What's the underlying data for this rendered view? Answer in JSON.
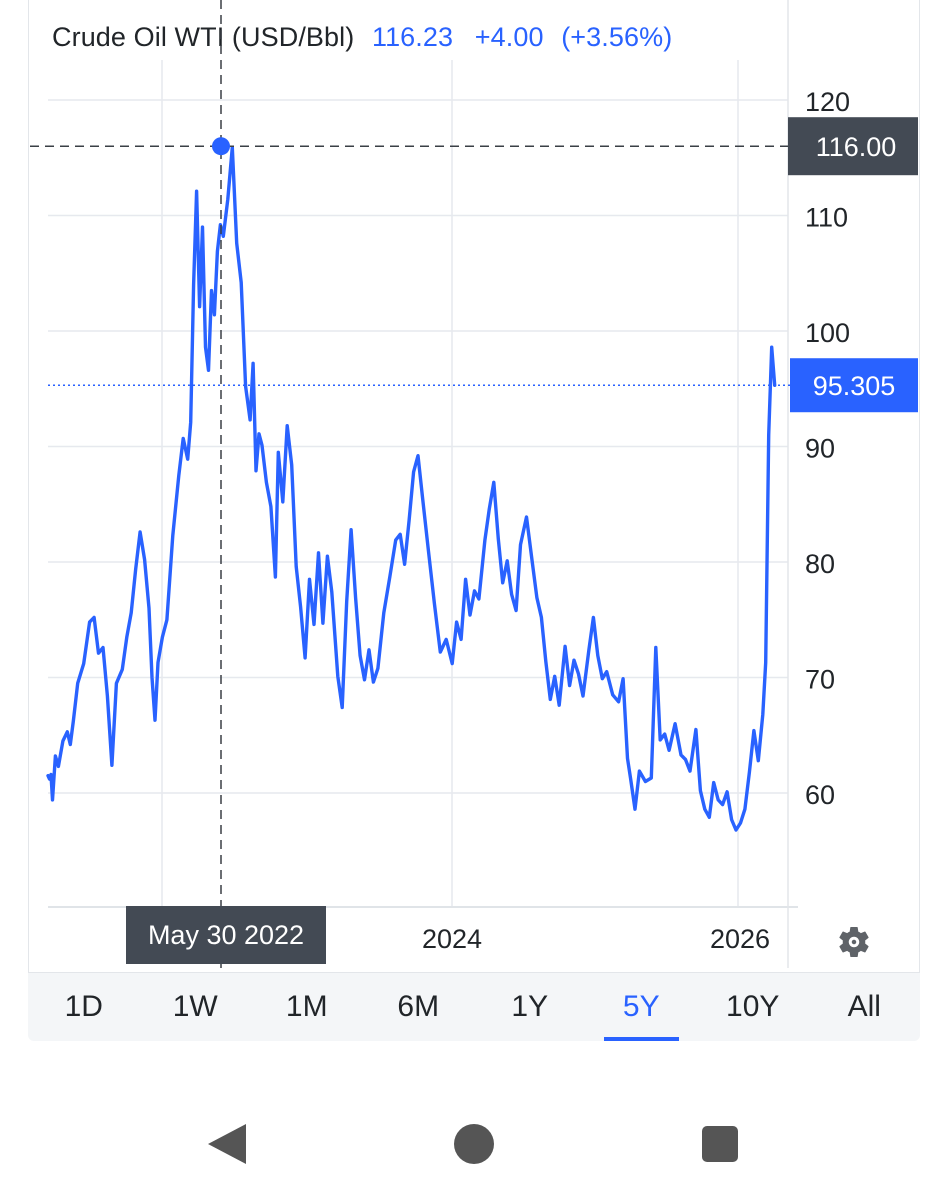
{
  "header": {
    "name": "Crude Oil WTI (USD/Bbl)",
    "price": "116.23",
    "change": "+4.00",
    "change_pct": "(+3.56%)"
  },
  "colors": {
    "series": "#2962ff",
    "crosshair_label_bg": "#434a54",
    "last_price_bg": "#2962ff",
    "grid": "#e6e9ee",
    "axis_text": "#212529"
  },
  "chart_data": {
    "type": "line",
    "title": "Crude Oil WTI (USD/Bbl)",
    "ylim": [
      50,
      124
    ],
    "y_ticks": [
      "60",
      "70",
      "80",
      "90",
      "100",
      "110",
      "120"
    ],
    "x_ticks": [
      "2024",
      "2026"
    ],
    "grid": true,
    "crosshair": {
      "date": "May 30 2022",
      "value": "116.00"
    },
    "last_price": "95.305",
    "series": [
      {
        "values": [
          [
            2021.0,
            61.5
          ],
          [
            2021.01,
            61.2
          ],
          [
            2021.02,
            61.6
          ],
          [
            2021.03,
            59.4
          ],
          [
            2021.05,
            63.2
          ],
          [
            2021.07,
            62.3
          ],
          [
            2021.1,
            64.5
          ],
          [
            2021.13,
            65.3
          ],
          [
            2021.15,
            64.2
          ],
          [
            2021.17,
            66.2
          ],
          [
            2021.2,
            69.5
          ],
          [
            2021.24,
            71.2
          ],
          [
            2021.28,
            74.8
          ],
          [
            2021.31,
            75.2
          ],
          [
            2021.34,
            72.1
          ],
          [
            2021.37,
            72.6
          ],
          [
            2021.4,
            68.4
          ],
          [
            2021.43,
            62.4
          ],
          [
            2021.46,
            69.5
          ],
          [
            2021.5,
            70.7
          ],
          [
            2021.53,
            73.5
          ],
          [
            2021.56,
            75.6
          ],
          [
            2021.59,
            79.4
          ],
          [
            2021.62,
            82.6
          ],
          [
            2021.65,
            80.2
          ],
          [
            2021.68,
            76.0
          ],
          [
            2021.7,
            70.0
          ],
          [
            2021.72,
            66.3
          ],
          [
            2021.74,
            71.3
          ],
          [
            2021.77,
            73.5
          ],
          [
            2021.8,
            75.0
          ],
          [
            2021.84,
            82.3
          ],
          [
            2021.88,
            87.5
          ],
          [
            2021.91,
            90.7
          ],
          [
            2021.94,
            88.9
          ],
          [
            2021.96,
            92.1
          ],
          [
            2021.98,
            104.0
          ],
          [
            2022.0,
            112.1
          ],
          [
            2022.02,
            102.1
          ],
          [
            2022.04,
            109.0
          ],
          [
            2022.06,
            98.6
          ],
          [
            2022.08,
            96.6
          ],
          [
            2022.1,
            103.5
          ],
          [
            2022.12,
            101.4
          ],
          [
            2022.14,
            106.9
          ],
          [
            2022.16,
            109.2
          ],
          [
            2022.18,
            108.2
          ],
          [
            2022.21,
            111.4
          ],
          [
            2022.24,
            115.9
          ],
          [
            2022.27,
            107.6
          ],
          [
            2022.3,
            104.2
          ],
          [
            2022.33,
            95.2
          ],
          [
            2022.36,
            92.3
          ],
          [
            2022.38,
            97.2
          ],
          [
            2022.4,
            87.9
          ],
          [
            2022.42,
            91.1
          ],
          [
            2022.44,
            90.1
          ],
          [
            2022.47,
            86.9
          ],
          [
            2022.5,
            84.8
          ],
          [
            2022.53,
            78.7
          ],
          [
            2022.55,
            89.5
          ],
          [
            2022.58,
            85.2
          ],
          [
            2022.61,
            91.8
          ],
          [
            2022.64,
            88.4
          ],
          [
            2022.67,
            79.6
          ],
          [
            2022.7,
            76.1
          ],
          [
            2022.73,
            71.7
          ],
          [
            2022.76,
            78.5
          ],
          [
            2022.79,
            74.6
          ],
          [
            2022.82,
            80.8
          ],
          [
            2022.85,
            74.7
          ],
          [
            2022.88,
            80.5
          ],
          [
            2022.91,
            77.4
          ],
          [
            2022.95,
            70.1
          ],
          [
            2022.98,
            67.4
          ],
          [
            2023.01,
            76.6
          ],
          [
            2023.04,
            82.8
          ],
          [
            2023.07,
            76.9
          ],
          [
            2023.1,
            71.9
          ],
          [
            2023.13,
            69.8
          ],
          [
            2023.16,
            72.4
          ],
          [
            2023.19,
            69.6
          ],
          [
            2023.22,
            70.8
          ],
          [
            2023.26,
            75.6
          ],
          [
            2023.3,
            78.7
          ],
          [
            2023.34,
            81.9
          ],
          [
            2023.37,
            82.4
          ],
          [
            2023.4,
            79.8
          ],
          [
            2023.43,
            83.6
          ],
          [
            2023.46,
            87.8
          ],
          [
            2023.49,
            89.2
          ],
          [
            2023.52,
            85.6
          ],
          [
            2023.56,
            81.0
          ],
          [
            2023.6,
            76.4
          ],
          [
            2023.64,
            72.2
          ],
          [
            2023.68,
            73.3
          ],
          [
            2023.72,
            71.2
          ],
          [
            2023.75,
            74.8
          ],
          [
            2023.78,
            73.3
          ],
          [
            2023.81,
            78.5
          ],
          [
            2023.84,
            75.4
          ],
          [
            2023.87,
            77.5
          ],
          [
            2023.9,
            76.8
          ],
          [
            2023.94,
            81.9
          ],
          [
            2023.97,
            84.6
          ],
          [
            2024.0,
            86.9
          ],
          [
            2024.03,
            82.0
          ],
          [
            2024.06,
            78.2
          ],
          [
            2024.09,
            80.1
          ],
          [
            2024.12,
            77.2
          ],
          [
            2024.15,
            75.8
          ],
          [
            2024.18,
            81.5
          ],
          [
            2024.22,
            83.9
          ],
          [
            2024.26,
            79.9
          ],
          [
            2024.29,
            76.9
          ],
          [
            2024.32,
            75.2
          ],
          [
            2024.35,
            71.4
          ],
          [
            2024.38,
            68.1
          ],
          [
            2024.41,
            70.1
          ],
          [
            2024.44,
            67.6
          ],
          [
            2024.48,
            72.7
          ],
          [
            2024.51,
            69.3
          ],
          [
            2024.54,
            71.5
          ],
          [
            2024.57,
            70.3
          ],
          [
            2024.6,
            68.4
          ],
          [
            2024.64,
            72.4
          ],
          [
            2024.67,
            75.2
          ],
          [
            2024.7,
            71.9
          ],
          [
            2024.73,
            69.9
          ],
          [
            2024.76,
            70.5
          ],
          [
            2024.8,
            68.5
          ],
          [
            2024.84,
            67.9
          ],
          [
            2024.87,
            69.9
          ],
          [
            2024.9,
            63.0
          ],
          [
            2024.92,
            61.3
          ],
          [
            2024.95,
            58.6
          ],
          [
            2024.98,
            61.9
          ],
          [
            2025.02,
            61.0
          ],
          [
            2025.06,
            61.3
          ],
          [
            2025.09,
            72.6
          ],
          [
            2025.12,
            64.6
          ],
          [
            2025.15,
            65.1
          ],
          [
            2025.18,
            63.7
          ],
          [
            2025.22,
            66.0
          ],
          [
            2025.26,
            63.3
          ],
          [
            2025.29,
            62.9
          ],
          [
            2025.32,
            61.9
          ],
          [
            2025.36,
            65.5
          ],
          [
            2025.39,
            60.2
          ],
          [
            2025.42,
            58.6
          ],
          [
            2025.45,
            57.9
          ],
          [
            2025.48,
            60.9
          ],
          [
            2025.51,
            59.4
          ],
          [
            2025.54,
            59.0
          ],
          [
            2025.57,
            60.1
          ],
          [
            2025.6,
            57.7
          ],
          [
            2025.63,
            56.8
          ],
          [
            2025.66,
            57.4
          ],
          [
            2025.69,
            58.6
          ],
          [
            2025.72,
            61.8
          ],
          [
            2025.75,
            65.4
          ],
          [
            2025.78,
            62.8
          ],
          [
            2025.81,
            66.8
          ],
          [
            2025.83,
            71.3
          ],
          [
            2025.85,
            91.0
          ],
          [
            2025.87,
            98.6
          ],
          [
            2025.89,
            95.3
          ]
        ]
      }
    ]
  },
  "range_tabs": [
    {
      "label": "1D",
      "active": false
    },
    {
      "label": "1W",
      "active": false
    },
    {
      "label": "1M",
      "active": false
    },
    {
      "label": "6M",
      "active": false
    },
    {
      "label": "1Y",
      "active": false
    },
    {
      "label": "5Y",
      "active": true
    },
    {
      "label": "10Y",
      "active": false
    },
    {
      "label": "All",
      "active": false
    }
  ],
  "icons": {
    "settings": "gear-icon",
    "nav_back": "back-triangle-icon",
    "nav_home": "home-circle-icon",
    "nav_recents": "recents-square-icon"
  }
}
